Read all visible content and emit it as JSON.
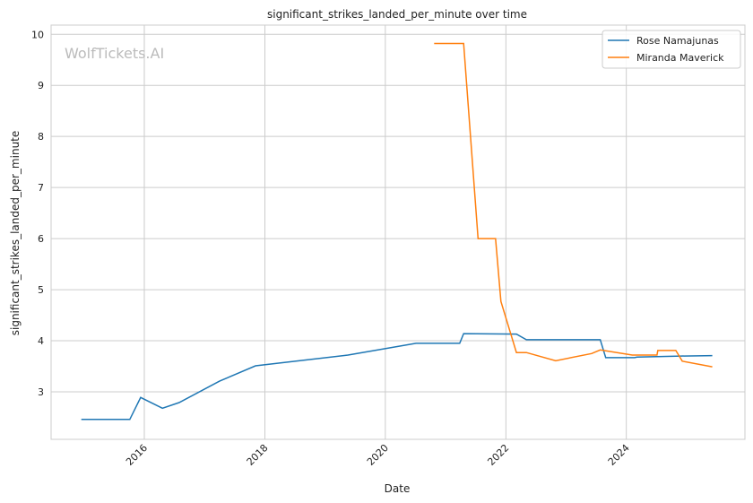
{
  "chart_data": {
    "type": "line",
    "title": "significant_strikes_landed_per_minute over time",
    "xlabel": "Date",
    "ylabel": "significant_strikes_landed_per_minute",
    "watermark": "WolfTickets.AI",
    "xlim": [
      "2014-06-15",
      "2025-12-20"
    ],
    "ylim": [
      2.07,
      10.18
    ],
    "x_ticks": [
      "2016",
      "2018",
      "2020",
      "2022",
      "2024"
    ],
    "y_ticks": [
      3,
      4,
      5,
      6,
      7,
      8,
      9,
      10
    ],
    "grid": true,
    "legend_position": "top-right",
    "series": [
      {
        "name": "Rose Namajunas",
        "color": "#1f77b4",
        "x": [
          "2014-12-15",
          "2015-10-05",
          "2015-12-10",
          "2016-04-20",
          "2016-07-30",
          "2017-04-01",
          "2017-11-05",
          "2019-05-20",
          "2020-07-05",
          "2021-03-27",
          "2021-04-20",
          "2022-03-06",
          "2022-05-05",
          "2023-07-27",
          "2023-08-29",
          "2024-02-20",
          "2024-03-06",
          "2024-11-27",
          "2025-06-05"
        ],
        "y": [
          2.46,
          2.46,
          2.89,
          2.68,
          2.79,
          3.21,
          3.51,
          3.72,
          3.95,
          3.95,
          4.14,
          4.13,
          4.02,
          4.02,
          3.67,
          3.67,
          3.68,
          3.7,
          3.71
        ]
      },
      {
        "name": "Miranda Maverick",
        "color": "#ff7f0e",
        "x": [
          "2020-10-23",
          "2021-04-20",
          "2021-07-16",
          "2021-10-30",
          "2021-12-02",
          "2022-03-06",
          "2022-05-05",
          "2022-10-30",
          "2023-06-05",
          "2023-07-27",
          "2024-02-06",
          "2024-07-05",
          "2024-07-10",
          "2024-10-27",
          "2024-12-05",
          "2025-06-05"
        ],
        "y": [
          9.82,
          9.82,
          6.0,
          6.0,
          4.77,
          3.77,
          3.77,
          3.61,
          3.75,
          3.82,
          3.72,
          3.72,
          3.81,
          3.81,
          3.6,
          3.49
        ]
      }
    ]
  }
}
